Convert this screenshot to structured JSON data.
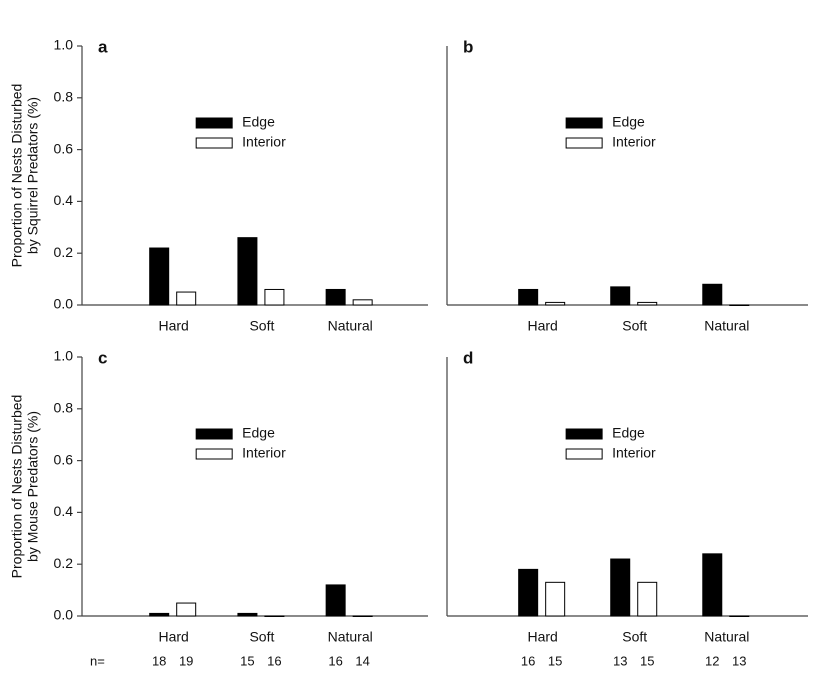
{
  "chart_data": [
    {
      "type": "bar",
      "panel_label": "a",
      "ylabel": [
        "Proportion of Nests Disturbed",
        "by Squirrel Predators (%)"
      ],
      "categories": [
        "Hard",
        "Soft",
        "Natural"
      ],
      "series": [
        {
          "name": "Edge",
          "color": "#000000",
          "values": [
            0.22,
            0.26,
            0.06
          ]
        },
        {
          "name": "Interior",
          "color": "#ffffff",
          "values": [
            0.05,
            0.06,
            0.02
          ]
        }
      ],
      "ylim": [
        0,
        1
      ],
      "yticks": [
        {
          "value": 0,
          "label": "0.0"
        },
        0.2,
        0.4,
        0.6,
        0.8,
        {
          "value": 1,
          "label": "1.0"
        }
      ],
      "legend": "center"
    },
    {
      "type": "bar",
      "panel_label": "b",
      "categories": [
        "Hard",
        "Soft",
        "Natural"
      ],
      "series": [
        {
          "name": "Edge",
          "color": "#000000",
          "values": [
            0.06,
            0.07,
            0.08
          ]
        },
        {
          "name": "Interior",
          "color": "#ffffff",
          "values": [
            0.01,
            0.01,
            0
          ]
        }
      ],
      "ylim": [
        0,
        1
      ],
      "legend": "center"
    },
    {
      "type": "bar",
      "panel_label": "c",
      "ylabel": [
        "Proportion of Nests Disturbed",
        "by Mouse Predators (%)"
      ],
      "categories": [
        "Hard",
        "Soft",
        "Natural"
      ],
      "n_label": "n=",
      "series": [
        {
          "name": "Edge",
          "color": "#000000",
          "values": [
            0.01,
            0.01,
            0.12
          ],
          "n": [
            18,
            15,
            16
          ]
        },
        {
          "name": "Interior",
          "color": "#ffffff",
          "values": [
            0.05,
            0,
            0
          ],
          "n": [
            19,
            16,
            14
          ]
        }
      ],
      "ylim": [
        0,
        1
      ],
      "yticks": [
        {
          "value": 0,
          "label": "0.0"
        },
        0.2,
        0.4,
        0.6,
        0.8,
        {
          "value": 1,
          "label": "1.0"
        }
      ],
      "legend": "center"
    },
    {
      "type": "bar",
      "panel_label": "d",
      "categories": [
        "Hard",
        "Soft",
        "Natural"
      ],
      "series": [
        {
          "name": "Edge",
          "color": "#000000",
          "values": [
            0.18,
            0.22,
            0.24
          ],
          "n": [
            16,
            13,
            12
          ]
        },
        {
          "name": "Interior",
          "color": "#ffffff",
          "values": [
            0.13,
            0.13,
            0
          ],
          "n": [
            15,
            15,
            13
          ]
        }
      ],
      "ylim": [
        0,
        1
      ],
      "legend": "center"
    }
  ]
}
